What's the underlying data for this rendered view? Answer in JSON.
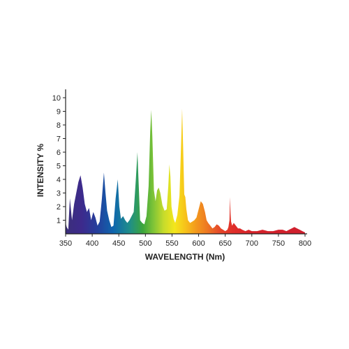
{
  "chart_data": {
    "type": "area",
    "title": "",
    "xlabel": "WAVELENGTH (Nm)",
    "ylabel": "INTENSITY %",
    "xlim": [
      350,
      800
    ],
    "ylim": [
      0,
      10
    ],
    "x_ticks": [
      "350",
      "400",
      "450",
      "500",
      "550",
      "600",
      "650",
      "700",
      "750",
      "800"
    ],
    "y_ticks": [
      "1",
      "2",
      "3",
      "4",
      "5",
      "6",
      "7",
      "8",
      "9",
      "10"
    ],
    "grid": false,
    "legend": "none",
    "fill": "spectral gradient (violet to red)",
    "series": [
      {
        "x": [
          350,
          352,
          355,
          358,
          362,
          366,
          370,
          374,
          378,
          382,
          386,
          390,
          394,
          398,
          402,
          406,
          410,
          414,
          418,
          422,
          425,
          428,
          432,
          436,
          440,
          444,
          448,
          451,
          454,
          458,
          462,
          466,
          470,
          474,
          478,
          482,
          485,
          487,
          490,
          494,
          498,
          502,
          506,
          509,
          511,
          513,
          516,
          519,
          522,
          525,
          528,
          532,
          536,
          540,
          543,
          545,
          547,
          549,
          551,
          553,
          556,
          560,
          564,
          567,
          569,
          571,
          573,
          575,
          577,
          580,
          584,
          588,
          592,
          596,
          600,
          604,
          608,
          612,
          615,
          618,
          622,
          626,
          630,
          634,
          638,
          642,
          646,
          650,
          654,
          656,
          658,
          659,
          660,
          661,
          663,
          666,
          670,
          674,
          678,
          682,
          688,
          694,
          700,
          710,
          720,
          730,
          740,
          750,
          758,
          765,
          770,
          775,
          780,
          785,
          790,
          795,
          800
        ],
        "y": [
          0.8,
          0.5,
          0.3,
          2.6,
          1.0,
          2.2,
          3.0,
          3.8,
          4.3,
          3.4,
          2.2,
          1.6,
          1.9,
          1.0,
          1.6,
          1.2,
          0.6,
          0.9,
          2.5,
          4.5,
          3.0,
          1.7,
          1.0,
          0.5,
          0.6,
          2.6,
          4.0,
          2.0,
          1.1,
          1.3,
          1.0,
          0.8,
          1.0,
          1.3,
          1.6,
          4.0,
          6.0,
          4.0,
          1.0,
          0.8,
          0.7,
          1.3,
          3.5,
          7.5,
          9.1,
          7.2,
          3.2,
          2.4,
          3.2,
          3.4,
          3.0,
          2.1,
          1.7,
          1.8,
          3.5,
          5.1,
          4.2,
          2.0,
          1.5,
          1.1,
          0.8,
          1.4,
          2.8,
          6.5,
          9.2,
          6.2,
          2.9,
          2.7,
          1.8,
          1.0,
          0.8,
          0.9,
          1.0,
          1.2,
          1.8,
          2.4,
          2.2,
          1.6,
          1.0,
          0.8,
          0.6,
          0.4,
          0.5,
          0.7,
          0.6,
          0.4,
          0.3,
          0.2,
          0.3,
          0.5,
          1.0,
          2.7,
          1.5,
          0.9,
          0.6,
          0.8,
          0.6,
          0.4,
          0.4,
          0.3,
          0.2,
          0.3,
          0.2,
          0.2,
          0.3,
          0.2,
          0.2,
          0.3,
          0.3,
          0.2,
          0.3,
          0.4,
          0.5,
          0.4,
          0.3,
          0.2,
          0.1
        ]
      }
    ],
    "colors": {
      "axis": "#222222",
      "text": "#222222",
      "spectrum_stops": [
        {
          "nm": 350,
          "color": "#3b2f7a"
        },
        {
          "nm": 380,
          "color": "#3d2a8c"
        },
        {
          "nm": 410,
          "color": "#243f9c"
        },
        {
          "nm": 440,
          "color": "#0f66ad"
        },
        {
          "nm": 470,
          "color": "#1f8e8a"
        },
        {
          "nm": 495,
          "color": "#3ba53c"
        },
        {
          "nm": 515,
          "color": "#7fc437"
        },
        {
          "nm": 535,
          "color": "#c8dc2b"
        },
        {
          "nm": 555,
          "color": "#f4e61c"
        },
        {
          "nm": 575,
          "color": "#f7c21a"
        },
        {
          "nm": 595,
          "color": "#f39a1d"
        },
        {
          "nm": 615,
          "color": "#ee7a22"
        },
        {
          "nm": 640,
          "color": "#e5482a"
        },
        {
          "nm": 665,
          "color": "#e02e2a"
        },
        {
          "nm": 700,
          "color": "#d5232a"
        },
        {
          "nm": 800,
          "color": "#cf1f2e"
        }
      ]
    }
  }
}
